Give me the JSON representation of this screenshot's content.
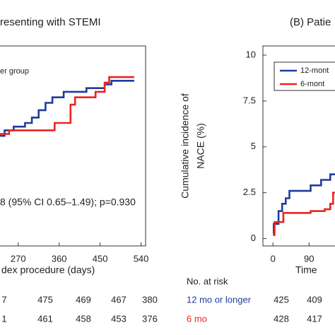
{
  "chart_data": [
    {
      "type": "line",
      "title": "resenting with STEMI",
      "xlabel": "dex procedure (days)",
      "annotation": "8 (95% CI 0.65–1.49); p=0.930",
      "legend": [
        "er group"
      ],
      "xlim": [
        0,
        550
      ],
      "ylim": [
        -0.4,
        10.5
      ],
      "xticks": [
        270,
        360,
        450,
        540
      ],
      "series": [
        {
          "color": "#1f3c9c",
          "x": [
            225,
            240,
            240,
            260,
            260,
            285,
            285,
            300,
            300,
            315,
            315,
            330,
            330,
            345,
            345,
            370,
            370,
            420,
            420,
            460,
            460,
            475,
            475,
            525
          ],
          "values": [
            5.6,
            5.6,
            5.9,
            5.9,
            6.1,
            6.1,
            6.3,
            6.3,
            6.6,
            6.6,
            7.0,
            7.0,
            7.4,
            7.4,
            7.7,
            7.7,
            8.0,
            8.0,
            8.2,
            8.2,
            8.4,
            8.4,
            8.6,
            8.6
          ]
        },
        {
          "color": "#e8251f",
          "x": [
            225,
            250,
            250,
            350,
            350,
            385,
            385,
            395,
            395,
            440,
            440,
            460,
            460,
            470,
            470,
            525
          ],
          "values": [
            5.7,
            5.7,
            5.9,
            5.9,
            6.3,
            6.3,
            7.3,
            7.3,
            7.7,
            7.7,
            8.0,
            8.0,
            8.5,
            8.5,
            8.8,
            8.8
          ]
        }
      ],
      "risk_table": {
        "rows": [
          {
            "values": [
              7,
              475,
              469,
              467,
              380
            ]
          },
          {
            "values": [
              1,
              461,
              458,
              453,
              376
            ]
          }
        ]
      }
    },
    {
      "type": "line",
      "title": "(B) Patie",
      "ylabel": [
        "Cumulative incidence of",
        "NACE (%)"
      ],
      "xlabel": "Time",
      "xlim": [
        -25,
        560
      ],
      "ylim": [
        -0.4,
        10.5
      ],
      "xticks": [
        0,
        90
      ],
      "yticks": [
        0,
        2.5,
        5,
        7.5,
        10
      ],
      "series": [
        {
          "name": "12-mont",
          "color": "#1f3c9c",
          "x": [
            0,
            2,
            2,
            14,
            14,
            23,
            23,
            32,
            32,
            41,
            41,
            94,
            94,
            120,
            120,
            143,
            143,
            160
          ],
          "values": [
            0.3,
            0.3,
            0.8,
            0.8,
            1.5,
            1.5,
            1.9,
            1.9,
            2.2,
            2.2,
            2.6,
            2.6,
            2.9,
            2.9,
            3.2,
            3.2,
            3.5,
            3.5
          ]
        },
        {
          "name": "6-mont",
          "color": "#e8251f",
          "x": [
            0,
            4,
            4,
            26,
            26,
            94,
            94,
            129,
            129,
            143,
            143,
            150,
            150,
            160
          ],
          "values": [
            0.2,
            0.2,
            0.9,
            0.9,
            1.4,
            1.4,
            1.5,
            1.5,
            1.6,
            1.6,
            1.9,
            1.9,
            2.5,
            2.5
          ]
        }
      ],
      "risk_table": {
        "title": "No. at risk",
        "rows": [
          {
            "label": "12 mo or longer",
            "color": "#1f3c9c",
            "values": [
              425,
              409
            ]
          },
          {
            "label": "6 mo",
            "color": "#e8251f",
            "values": [
              428,
              417
            ]
          }
        ]
      }
    }
  ]
}
